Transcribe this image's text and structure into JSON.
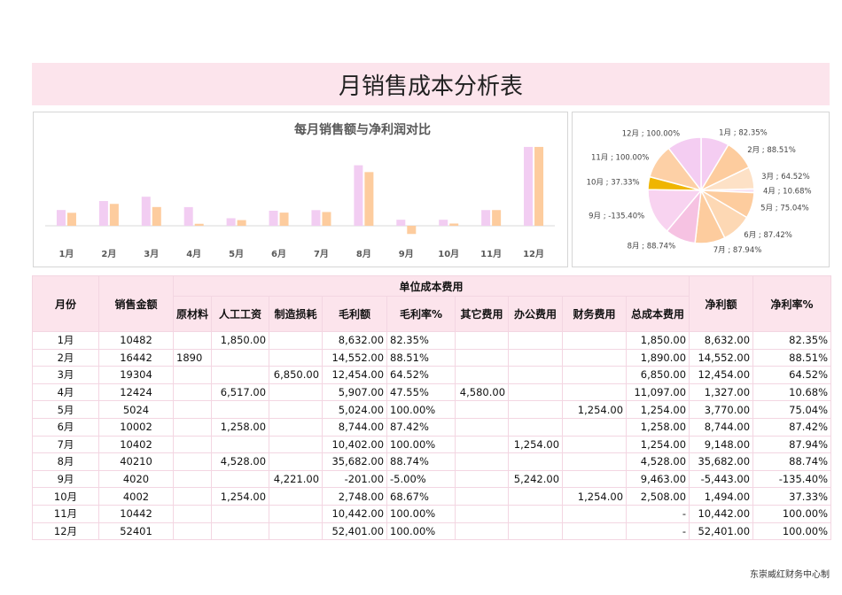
{
  "header": {
    "title": "月销售成本分析表"
  },
  "chart_data": [
    {
      "type": "bar",
      "title": "每月销售额与净利润对比",
      "categories": [
        "1月",
        "2月",
        "3月",
        "4月",
        "5月",
        "6月",
        "7月",
        "8月",
        "9月",
        "10月",
        "11月",
        "12月"
      ],
      "series": [
        {
          "color": "#f2cdf2",
          "values": [
            10482,
            16442,
            19304,
            12424,
            5024,
            10002,
            10402,
            40210,
            4020,
            4002,
            10442,
            52401
          ]
        },
        {
          "color": "#fdcc9e",
          "values": [
            8632,
            14552,
            12454,
            1327,
            3770,
            8744,
            9148,
            35682,
            -5443,
            1494,
            10442,
            52401
          ]
        }
      ],
      "ylim": [
        -10000,
        60000
      ]
    },
    {
      "type": "pie",
      "categories": [
        "1月",
        "2月",
        "3月",
        "4月",
        "5月",
        "6月",
        "7月",
        "8月",
        "9月",
        "10月",
        "11月",
        "12月"
      ],
      "values": [
        82.35,
        88.51,
        64.52,
        10.68,
        75.04,
        87.42,
        87.94,
        88.74,
        -135.4,
        37.33,
        100,
        100
      ],
      "value_labels": [
        "1月 ; 82.35%",
        "2月 ; 88.51%",
        "3月 ; 64.52%",
        "4月 ; 10.68%",
        "5月 ; 75.04%",
        "6月 ; 87.42%",
        "7月 ; 87.94%",
        "8月 ; 88.74%",
        "9月 ; -135.40%",
        "10月 ; 37.33%",
        "11月 ; 100.00%",
        "12月 ; 100.00%"
      ],
      "colors": [
        "#f4cdf2",
        "#fdcc9e",
        "#fde1c6",
        "#f7e1f5",
        "#fdcc9e",
        "#fdd8b4",
        "#fdcc9e",
        "#f6c2e2",
        "#f8d3f0",
        "#efb500",
        "#fdd0a6",
        "#f4cdf2"
      ]
    }
  ],
  "table": {
    "columns": [
      "月份",
      "销售金额",
      "原材料",
      "人工工资",
      "制造损耗",
      "毛利额",
      "毛利率%",
      "其它费用",
      "办公费用",
      "财务费用",
      "总成本费用",
      "净利额",
      "净利率%"
    ],
    "group": "单位成本费用",
    "rows": [
      [
        "1月",
        "10482",
        null,
        "1,850.00",
        null,
        "8,632.00",
        "82.35%",
        null,
        null,
        null,
        "1,850.00",
        "8,632.00",
        "82.35%"
      ],
      [
        "2月",
        "16442",
        "1890",
        null,
        null,
        "14,552.00",
        "88.51%",
        null,
        null,
        null,
        "1,890.00",
        "14,552.00",
        "88.51%"
      ],
      [
        "3月",
        "19304",
        null,
        null,
        "6,850.00",
        "12,454.00",
        "64.52%",
        null,
        null,
        null,
        "6,850.00",
        "12,454.00",
        "64.52%"
      ],
      [
        "4月",
        "12424",
        null,
        "6,517.00",
        null,
        "5,907.00",
        "47.55%",
        "4,580.00",
        null,
        null,
        "11,097.00",
        "1,327.00",
        "10.68%"
      ],
      [
        "5月",
        "5024",
        null,
        null,
        null,
        "5,024.00",
        "100.00%",
        null,
        null,
        "1,254.00",
        "1,254.00",
        "3,770.00",
        "75.04%"
      ],
      [
        "6月",
        "10002",
        null,
        "1,258.00",
        null,
        "8,744.00",
        "87.42%",
        null,
        null,
        null,
        "1,258.00",
        "8,744.00",
        "87.42%"
      ],
      [
        "7月",
        "10402",
        null,
        null,
        null,
        "10,402.00",
        "100.00%",
        null,
        "1,254.00",
        null,
        "1,254.00",
        "9,148.00",
        "87.94%"
      ],
      [
        "8月",
        "40210",
        null,
        "4,528.00",
        null,
        "35,682.00",
        "88.74%",
        null,
        null,
        null,
        "4,528.00",
        "35,682.00",
        "88.74%"
      ],
      [
        "9月",
        "4020",
        null,
        null,
        "4,221.00",
        "-201.00",
        "-5.00%",
        null,
        "5,242.00",
        null,
        "9,463.00",
        "-5,443.00",
        "-135.40%"
      ],
      [
        "10月",
        "4002",
        null,
        "1,254.00",
        null,
        "2,748.00",
        "68.67%",
        null,
        null,
        "1,254.00",
        "2,508.00",
        "1,494.00",
        "37.33%"
      ],
      [
        "11月",
        "10442",
        null,
        null,
        null,
        "10,442.00",
        "100.00%",
        null,
        null,
        null,
        "-",
        "10,442.00",
        "100.00%"
      ],
      [
        "12月",
        "52401",
        null,
        null,
        null,
        "52,401.00",
        "100.00%",
        null,
        null,
        null,
        "-",
        "52,401.00",
        "100.00%"
      ]
    ]
  },
  "footer": "东崇威红财务中心制"
}
